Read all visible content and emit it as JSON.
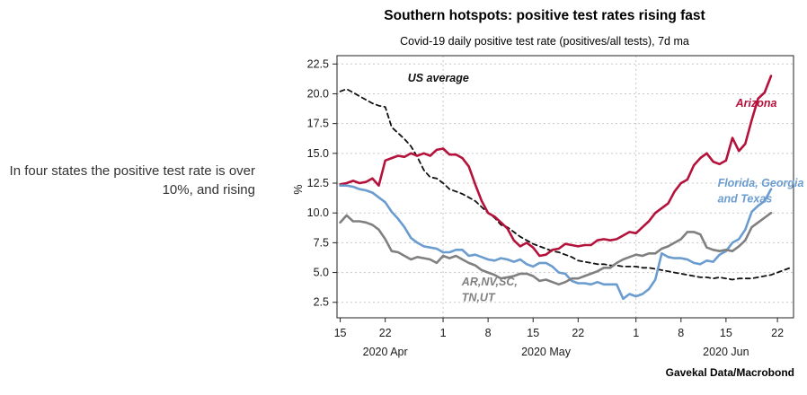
{
  "side_note": "In four states the positive test rate is over 10%, and rising",
  "chart_data": {
    "type": "line",
    "title": "Southern hotspots: positive test rates rising fast",
    "subtitle": "Covid-19 daily positive test rate (positives/all tests), 7d ma",
    "ylabel": "%",
    "source": "Gavekal Data/Macrobond",
    "ylim": [
      1.2,
      23.2
    ],
    "yticks": [
      2.5,
      5.0,
      7.5,
      10.0,
      12.5,
      15.0,
      17.5,
      20.0,
      22.5
    ],
    "ytick_labels": [
      "2.5",
      "5.0",
      "7.5",
      "10.0",
      "12.5",
      "15.0",
      "17.5",
      "20.0",
      "22.5"
    ],
    "xlim": [
      -0.5,
      70.5
    ],
    "xticks": [
      0,
      7,
      16,
      23,
      30,
      37,
      46,
      53,
      60,
      68
    ],
    "xtick_labels": [
      "15",
      "22",
      "1",
      "8",
      "15",
      "22",
      "1",
      "8",
      "15",
      "22"
    ],
    "month_labels": [
      {
        "label": "2020 Apr",
        "x": 7
      },
      {
        "label": "2020 May",
        "x": 32
      },
      {
        "label": "2020 Jun",
        "x": 60
      }
    ],
    "gridlines_x": [
      16,
      46
    ],
    "grid": "dashed",
    "series": [
      {
        "name": "US average",
        "color": "#111111",
        "dash": true,
        "values": [
          20.2,
          20.4,
          20.1,
          19.8,
          19.5,
          19.2,
          19.0,
          18.9,
          17.2,
          16.7,
          16.2,
          15.6,
          14.7,
          13.6,
          13.0,
          12.9,
          12.5,
          12.0,
          11.8,
          11.6,
          11.3,
          11.0,
          10.5,
          10.0,
          9.6,
          9.0,
          8.8,
          8.4,
          8.0,
          7.7,
          7.4,
          7.2,
          7.0,
          6.8,
          6.7,
          6.5,
          6.3,
          6.0,
          5.9,
          5.8,
          5.7,
          5.7,
          5.6,
          5.6,
          5.5,
          5.5,
          5.5,
          5.4,
          5.4,
          5.3,
          5.2,
          5.1,
          5.0,
          4.9,
          4.8,
          4.7,
          4.6,
          4.6,
          4.5,
          4.6,
          4.5,
          4.4,
          4.5,
          4.5,
          4.5,
          4.6,
          4.7,
          4.8,
          5.0,
          5.2,
          5.4
        ]
      },
      {
        "name": "Arizona",
        "color": "#b5123b",
        "values": [
          12.4,
          12.5,
          12.7,
          12.5,
          12.6,
          12.9,
          12.3,
          14.4,
          14.6,
          14.8,
          14.7,
          15.0,
          14.8,
          15.0,
          14.8,
          15.3,
          15.4,
          14.9,
          14.9,
          14.6,
          13.9,
          12.4,
          11.0,
          10.0,
          9.7,
          9.2,
          8.7,
          7.7,
          7.2,
          7.5,
          7.1,
          6.4,
          6.5,
          6.9,
          7.0,
          7.4,
          7.3,
          7.2,
          7.3,
          7.3,
          7.7,
          7.8,
          7.7,
          7.8,
          8.1,
          8.4,
          8.3,
          8.8,
          9.3,
          10.0,
          10.4,
          10.8,
          11.8,
          12.5,
          12.8,
          14.0,
          14.6,
          15.0,
          14.3,
          14.1,
          14.4,
          16.3,
          15.2,
          15.8,
          17.8,
          19.6,
          20.1,
          21.5
        ]
      },
      {
        "name": "Florida, Georgia and Texas",
        "color": "#6b9ccf",
        "values": [
          12.3,
          12.3,
          12.2,
          12.0,
          11.9,
          11.7,
          11.3,
          10.9,
          10.1,
          9.5,
          8.8,
          7.9,
          7.5,
          7.2,
          7.1,
          7.0,
          6.7,
          6.7,
          6.9,
          6.9,
          6.4,
          6.5,
          6.3,
          6.1,
          6.0,
          6.2,
          6.1,
          5.9,
          6.1,
          5.7,
          5.5,
          5.8,
          5.8,
          5.5,
          5.0,
          4.9,
          4.3,
          4.1,
          4.1,
          4.0,
          4.2,
          4.0,
          4.0,
          4.0,
          2.8,
          3.2,
          3.0,
          3.2,
          3.6,
          4.4,
          6.6,
          6.3,
          6.2,
          6.2,
          6.1,
          5.8,
          5.7,
          6.0,
          5.9,
          6.5,
          6.8,
          7.5,
          7.8,
          8.6,
          10.1,
          10.6,
          11.0,
          12.0
        ]
      },
      {
        "name": "AR,NV,SC, TN,UT",
        "color": "#808080",
        "values": [
          9.2,
          9.8,
          9.3,
          9.3,
          9.2,
          9.0,
          8.6,
          7.8,
          6.8,
          6.7,
          6.4,
          6.1,
          6.3,
          6.2,
          6.1,
          5.8,
          6.4,
          6.2,
          6.4,
          6.1,
          5.8,
          5.6,
          5.2,
          5.0,
          4.8,
          4.5,
          4.6,
          4.7,
          4.9,
          4.9,
          4.7,
          4.3,
          4.4,
          4.2,
          4.0,
          4.2,
          4.5,
          4.5,
          4.7,
          4.9,
          5.1,
          5.4,
          5.4,
          5.8,
          6.1,
          6.3,
          6.5,
          6.4,
          6.6,
          6.6,
          7.0,
          7.2,
          7.5,
          7.8,
          8.4,
          8.4,
          8.2,
          7.1,
          6.9,
          6.8,
          6.9,
          6.8,
          7.2,
          7.7,
          8.8,
          9.2,
          9.6,
          10.0
        ]
      }
    ],
    "annotations": [
      {
        "text": "US average",
        "series": "US average",
        "x": 10.5,
        "y": 21.0
      },
      {
        "text": "Arizona",
        "series": "Arizona",
        "x": 61.5,
        "y": 18.9
      },
      {
        "text": "Florida, Georgia",
        "series": "Florida, Georgia and Texas",
        "x": 58.7,
        "y": 12.2
      },
      {
        "text": "and Texas",
        "series": "Florida, Georgia and Texas",
        "x": 58.7,
        "y": 10.9
      },
      {
        "text": "AR,NV,SC,",
        "series": "AR,NV,SC, TN,UT",
        "x": 18.9,
        "y": 3.9
      },
      {
        "text": "TN,UT",
        "series": "AR,NV,SC, TN,UT",
        "x": 18.9,
        "y": 2.6
      }
    ]
  }
}
